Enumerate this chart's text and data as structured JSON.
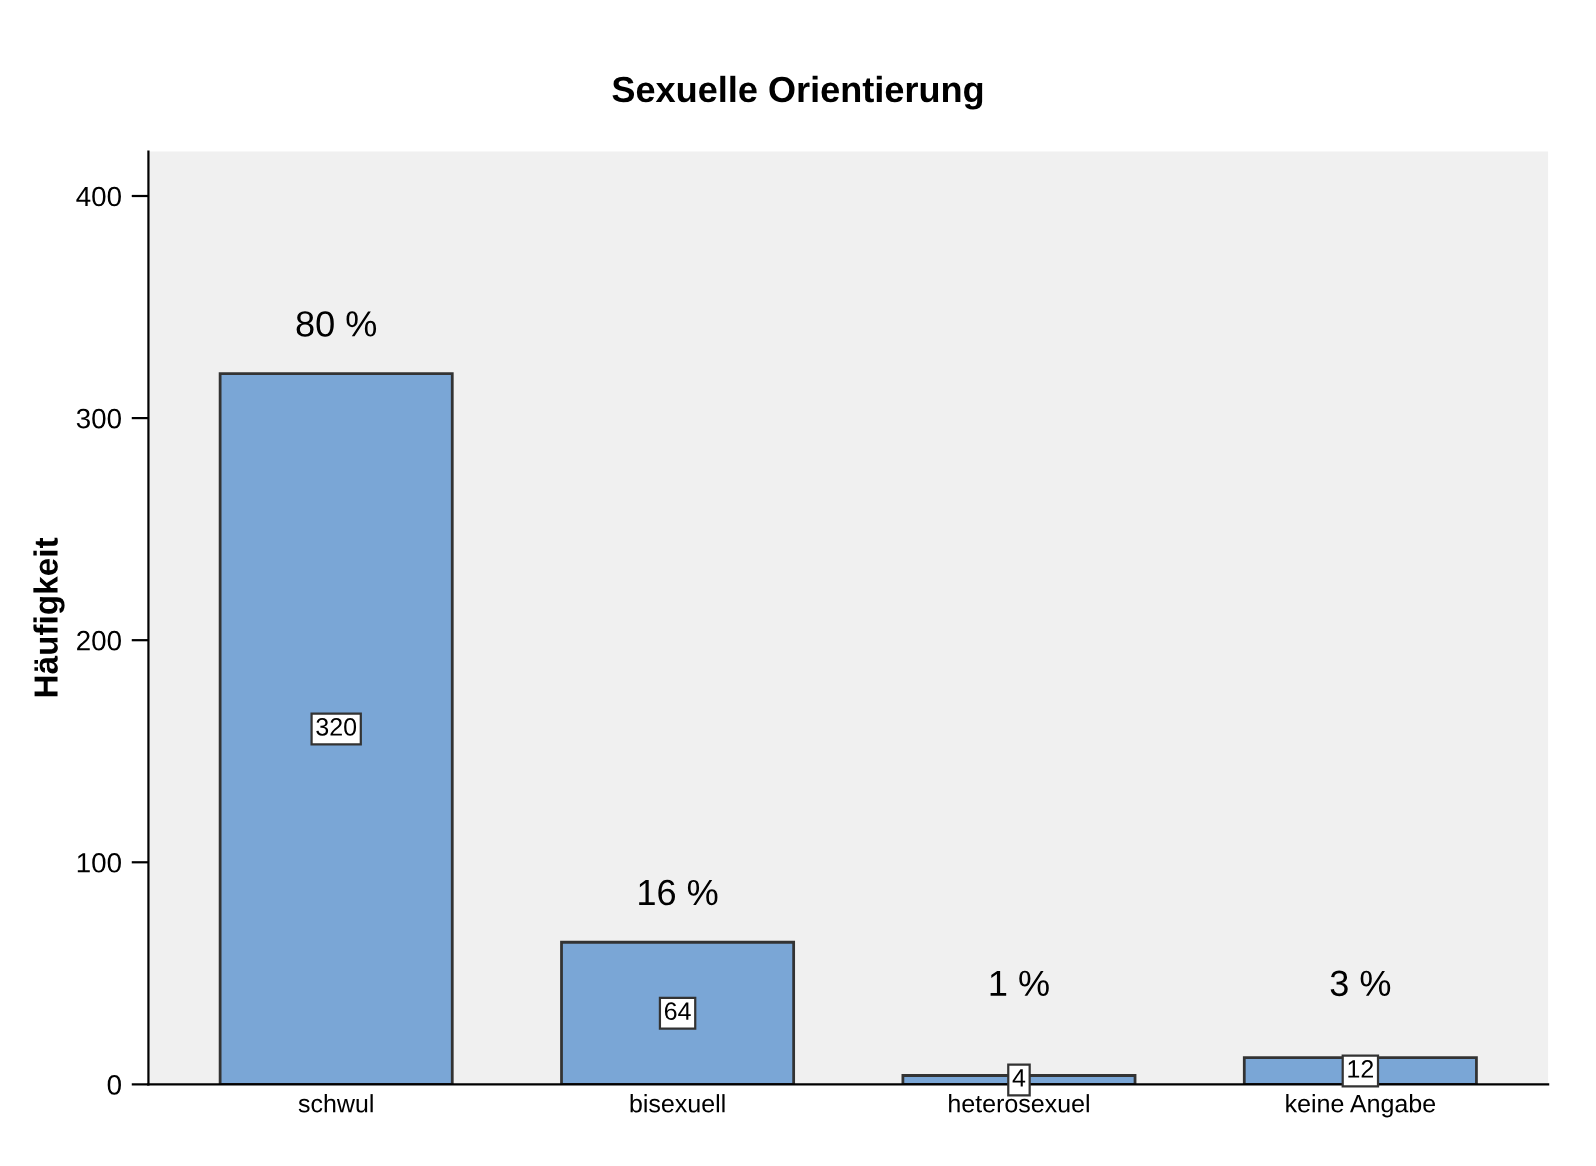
{
  "chart_data": {
    "type": "bar",
    "title": "Sexuelle Orientierung",
    "ylabel": "Häufigkeit",
    "categories": [
      "schwul",
      "bisexuell",
      "heterosexuel",
      "keine Angabe"
    ],
    "values": [
      320,
      64,
      4,
      12
    ],
    "color": "#7aa6d6",
    "ylim": [
      0,
      420
    ],
    "yticks": [
      0,
      100,
      200,
      300,
      400
    ],
    "grid": false,
    "data_labels": true,
    "annotations": [
      "80 %",
      "16 %",
      "1 %",
      "3 %"
    ]
  }
}
